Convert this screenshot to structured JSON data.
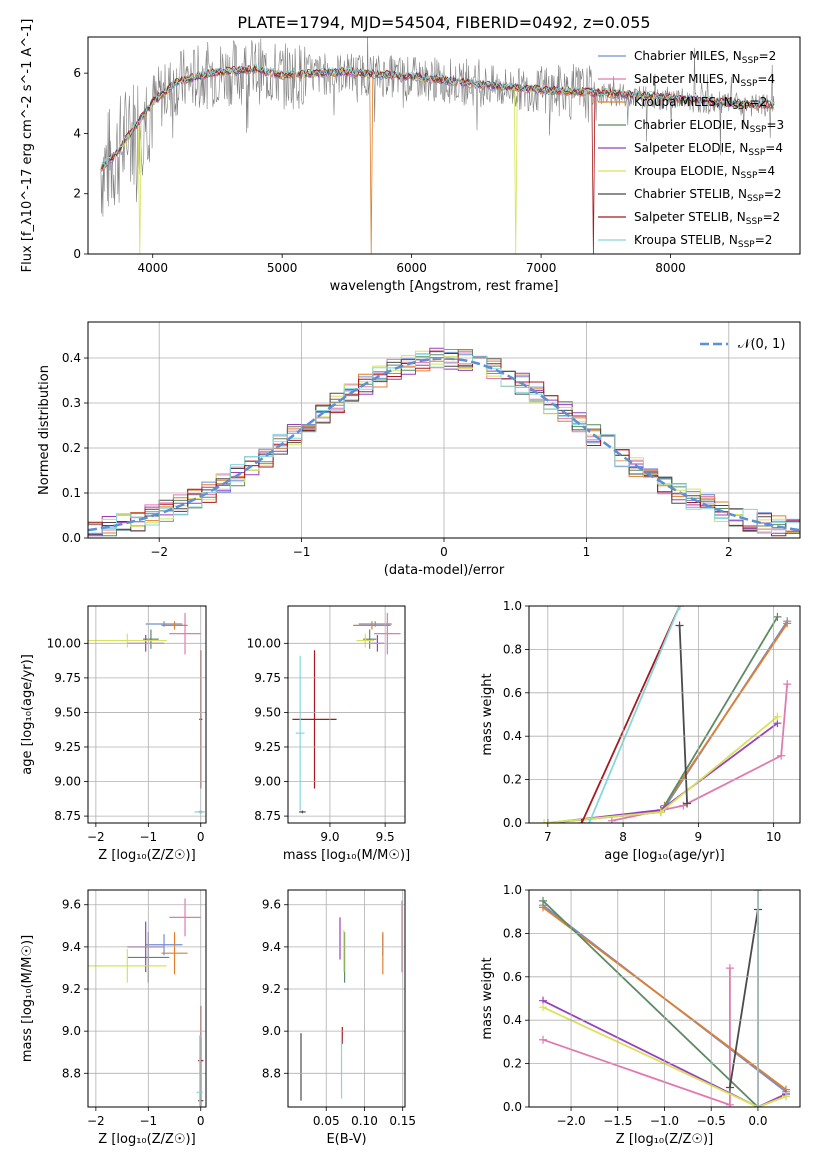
{
  "title": "PLATE=1794, MJD=54504, FIBERID=0492, z=0.055",
  "colors": {
    "Chabrier MILES": "#6f8fd6",
    "Salpeter MILES": "#e07ab0",
    "Kroupa MILES": "#df7f2e",
    "Chabrier ELODIE": "#5d8a62",
    "Salpeter ELODIE": "#9b3fbd",
    "Kroupa ELODIE": "#d7e35a",
    "Chabrier STELIB": "#4b4b4b",
    "Salpeter STELIB": "#a8181c",
    "Kroupa STELIB": "#86d8dc",
    "data": "#808080",
    "normal": "#5b8fd6"
  },
  "chart_data": [
    {
      "type": "line",
      "name": "spectrum",
      "xlabel": "wavelength [Angstrom, rest frame]",
      "ylabel": "Flux [f_λ10^-17 erg cm^-2 s^-1 A^-1]",
      "xlim": [
        3500,
        9000
      ],
      "ylim": [
        0,
        7.2
      ],
      "xticks": [
        "4000",
        "5000",
        "6000",
        "7000",
        "8000"
      ],
      "yticks": [
        "0",
        "2",
        "4",
        "6"
      ],
      "legend": [
        {
          "label": "Chabrier MILES, N",
          "sub": "SSP",
          "suffix": "=2",
          "key": "Chabrier MILES"
        },
        {
          "label": "Salpeter MILES, N",
          "sub": "SSP",
          "suffix": "=4",
          "key": "Salpeter MILES"
        },
        {
          "label": "Kroupa MILES, N",
          "sub": "SSP",
          "suffix": "=2",
          "key": "Kroupa MILES"
        },
        {
          "label": "Chabrier ELODIE, N",
          "sub": "SSP",
          "suffix": "=3",
          "key": "Chabrier ELODIE"
        },
        {
          "label": "Salpeter ELODIE, N",
          "sub": "SSP",
          "suffix": "=4",
          "key": "Salpeter ELODIE"
        },
        {
          "label": "Kroupa ELODIE, N",
          "sub": "SSP",
          "suffix": "=4",
          "key": "Kroupa ELODIE"
        },
        {
          "label": "Chabrier STELIB, N",
          "sub": "SSP",
          "suffix": "=2",
          "key": "Chabrier STELIB"
        },
        {
          "label": "Salpeter STELIB, N",
          "sub": "SSP",
          "suffix": "=2",
          "key": "Salpeter STELIB"
        },
        {
          "label": "Kroupa STELIB, N",
          "sub": "SSP",
          "suffix": "=2",
          "key": "Kroupa STELIB"
        }
      ],
      "continuum": [
        [
          3600,
          2.8
        ],
        [
          3700,
          3.2
        ],
        [
          3800,
          3.8
        ],
        [
          3900,
          4.4
        ],
        [
          4000,
          5.0
        ],
        [
          4200,
          5.7
        ],
        [
          4500,
          6.0
        ],
        [
          4800,
          6.1
        ],
        [
          5000,
          5.9
        ],
        [
          5500,
          6.0
        ],
        [
          6000,
          5.85
        ],
        [
          6500,
          5.6
        ],
        [
          7000,
          5.4
        ],
        [
          7500,
          5.3
        ],
        [
          8000,
          5.15
        ],
        [
          8500,
          4.95
        ],
        [
          8800,
          4.9
        ]
      ]
    },
    {
      "type": "histogram",
      "name": "residuals",
      "xlabel": "(data-model)/error",
      "ylabel": "Normed distribution",
      "xlim": [
        -2.5,
        2.5
      ],
      "ylim": [
        0,
        0.48
      ],
      "xticks": [
        "−2",
        "−1",
        "0",
        "1",
        "2"
      ],
      "yticks": [
        "0.0",
        "0.1",
        "0.2",
        "0.3",
        "0.4"
      ],
      "legend": "𝒩(0, 1)",
      "bin_width": 0.1
    },
    {
      "type": "scatter",
      "name": "age-vs-Z",
      "xlabel": "Z [log₁₀(Z/Z☉)]",
      "ylabel": "age  [log₁₀(age/yr)]",
      "xlim": [
        -2.15,
        0.1
      ],
      "ylim": [
        8.7,
        10.27
      ],
      "xticks": [
        "−2",
        "−1",
        "0"
      ],
      "yticks": [
        "8.75",
        "9.00",
        "9.25",
        "9.50",
        "9.75",
        "10.00"
      ],
      "points": [
        {
          "s": "Chabrier MILES",
          "x": -0.7,
          "xe": 0.35,
          "y": 10.14,
          "ye": 0.02
        },
        {
          "s": "Salpeter MILES",
          "x": -0.3,
          "xe": 0.3,
          "y": 10.07,
          "ye": 0.15
        },
        {
          "s": "Kroupa MILES",
          "x": -0.5,
          "xe": 0.25,
          "y": 10.13,
          "ye": 0.03
        },
        {
          "s": "Chabrier ELODIE",
          "x": -0.95,
          "xe": 0.15,
          "y": 10.03,
          "ye": 0.07
        },
        {
          "s": "Salpeter ELODIE",
          "x": -1.05,
          "xe": 0.35,
          "y": 10.0,
          "ye": 0.06
        },
        {
          "s": "Kroupa ELODIE",
          "x": -1.4,
          "xe": 0.75,
          "y": 10.02,
          "ye": 0.05
        },
        {
          "s": "Chabrier STELIB",
          "x": 0.0,
          "xe": 0.05,
          "y": 8.78,
          "ye": 0.01
        },
        {
          "s": "Salpeter STELIB",
          "x": 0.0,
          "xe": 0.03,
          "y": 9.45,
          "ye": 0.5
        },
        {
          "s": "Kroupa STELIB",
          "x": -0.02,
          "xe": 0.1,
          "y": 8.78,
          "ye": 0.01
        }
      ]
    },
    {
      "type": "scatter",
      "name": "age-vs-mass",
      "xlabel": "mass [log₁₀(M/M☉)]",
      "ylabel": "",
      "xlim": [
        8.62,
        9.68
      ],
      "ylim": [
        8.7,
        10.27
      ],
      "xticks": [
        "9.0",
        "9.5"
      ],
      "yticks": [
        "8.75",
        "9.00",
        "9.25",
        "9.50",
        "9.75",
        "10.00"
      ],
      "points": [
        {
          "s": "Chabrier MILES",
          "x": 9.41,
          "xe": 0.15,
          "y": 10.14,
          "ye": 0.02
        },
        {
          "s": "Salpeter MILES",
          "x": 9.52,
          "xe": 0.12,
          "y": 10.07,
          "ye": 0.15
        },
        {
          "s": "Kroupa MILES",
          "x": 9.38,
          "xe": 0.17,
          "y": 10.13,
          "ye": 0.03
        },
        {
          "s": "Chabrier ELODIE",
          "x": 9.36,
          "xe": 0.06,
          "y": 10.03,
          "ye": 0.07
        },
        {
          "s": "Salpeter ELODIE",
          "x": 9.43,
          "xe": 0.06,
          "y": 10.0,
          "ye": 0.06
        },
        {
          "s": "Kroupa ELODIE",
          "x": 9.32,
          "xe": 0.08,
          "y": 10.02,
          "ye": 0.05
        },
        {
          "s": "Chabrier STELIB",
          "x": 8.75,
          "xe": 0.03,
          "y": 8.78,
          "ye": 0.01
        },
        {
          "s": "Salpeter STELIB",
          "x": 8.86,
          "xe": 0.2,
          "y": 9.45,
          "ye": 0.5
        },
        {
          "s": "Kroupa STELIB",
          "x": 8.73,
          "xe": 0.04,
          "y": 9.35,
          "ye": 0.56
        }
      ]
    },
    {
      "type": "line",
      "name": "weight-vs-age",
      "xlabel": "age  [log₁₀(age/yr)]",
      "ylabel": "mass weight",
      "xlim": [
        6.75,
        10.35
      ],
      "ylim": [
        0,
        1
      ],
      "xticks": [
        "7",
        "8",
        "9",
        "10"
      ],
      "yticks": [
        "0.0",
        "0.2",
        "0.4",
        "0.6",
        "0.8",
        "1.0"
      ],
      "series": [
        {
          "s": "Chabrier MILES",
          "x": [
            8.55,
            10.18
          ],
          "y": [
            0.07,
            0.93
          ]
        },
        {
          "s": "Salpeter MILES",
          "x": [
            7.85,
            8.8,
            10.1,
            10.18
          ],
          "y": [
            0.01,
            0.08,
            0.31,
            0.64
          ]
        },
        {
          "s": "Kroupa MILES",
          "x": [
            8.55,
            10.18
          ],
          "y": [
            0.08,
            0.92
          ]
        },
        {
          "s": "Chabrier ELODIE",
          "x": [
            7.0,
            8.5,
            10.05
          ],
          "y": [
            0.0,
            0.05,
            0.95
          ]
        },
        {
          "s": "Salpeter ELODIE",
          "x": [
            7.0,
            8.5,
            10.05
          ],
          "y": [
            0.0,
            0.06,
            0.46
          ]
        },
        {
          "s": "Kroupa ELODIE",
          "x": [
            6.95,
            8.5,
            10.05
          ],
          "y": [
            0.0,
            0.05,
            0.49
          ]
        },
        {
          "s": "Chabrier STELIB",
          "x": [
            8.75,
            8.85
          ],
          "y": [
            0.91,
            0.09
          ]
        },
        {
          "s": "Salpeter STELIB",
          "x": [
            7.45,
            8.75
          ],
          "y": [
            0.0,
            1.0
          ]
        },
        {
          "s": "Kroupa STELIB",
          "x": [
            7.55,
            8.75
          ],
          "y": [
            0.0,
            1.0
          ]
        }
      ]
    },
    {
      "type": "scatter",
      "name": "mass-vs-Z",
      "xlabel": "Z [log₁₀(Z/Z☉)]",
      "ylabel": "mass [log₁₀(M/M☉)]",
      "xlim": [
        -2.15,
        0.1
      ],
      "ylim": [
        8.64,
        9.67
      ],
      "xticks": [
        "−2",
        "−1",
        "0"
      ],
      "yticks": [
        "8.8",
        "9.0",
        "9.2",
        "9.4",
        "9.6"
      ],
      "points": [
        {
          "s": "Chabrier MILES",
          "x": -0.7,
          "xe": 0.35,
          "y": 9.41,
          "ye": 0.05
        },
        {
          "s": "Salpeter MILES",
          "x": -0.3,
          "xe": 0.3,
          "y": 9.54,
          "ye": 0.09
        },
        {
          "s": "Kroupa MILES",
          "x": -0.5,
          "xe": 0.25,
          "y": 9.37,
          "ye": 0.1
        },
        {
          "s": "Chabrier ELODIE",
          "x": -1.0,
          "xe": 0.4,
          "y": 9.35,
          "ye": 0.12
        },
        {
          "s": "Salpeter ELODIE",
          "x": -1.05,
          "xe": 0.35,
          "y": 9.4,
          "ye": 0.12
        },
        {
          "s": "Kroupa ELODIE",
          "x": -1.4,
          "xe": 0.75,
          "y": 9.31,
          "ye": 0.08
        },
        {
          "s": "Chabrier STELIB",
          "x": 0.0,
          "xe": 0.05,
          "y": 8.67,
          "ye": 0.3
        },
        {
          "s": "Salpeter STELIB",
          "x": 0.0,
          "xe": 0.05,
          "y": 8.86,
          "ye": 0.26
        },
        {
          "s": "Kroupa STELIB",
          "x": -0.02,
          "xe": 0.06,
          "y": 8.71,
          "ye": 0.27
        }
      ]
    },
    {
      "type": "scatter",
      "name": "mass-vs-ebv",
      "xlabel": "E(B-V)",
      "ylabel": "",
      "xlim": [
        0.0,
        0.153
      ],
      "ylim": [
        8.64,
        9.67
      ],
      "xticks": [
        "0.05",
        "0.10",
        "0.15"
      ],
      "yticks": [
        "8.8",
        "9.0",
        "9.2",
        "9.4",
        "9.6"
      ],
      "points": [
        {
          "s": "Chabrier MILES",
          "x": 0.124,
          "xe": 0,
          "y": 9.41,
          "ye": 0.05
        },
        {
          "s": "Salpeter MILES",
          "x": 0.149,
          "xe": 0,
          "y": 9.45,
          "ye": 0.17
        },
        {
          "s": "Kroupa MILES",
          "x": 0.124,
          "xe": 0,
          "y": 9.37,
          "ye": 0.1
        },
        {
          "s": "Chabrier ELODIE",
          "x": 0.074,
          "xe": 0,
          "y": 9.35,
          "ye": 0.12
        },
        {
          "s": "Salpeter ELODIE",
          "x": 0.068,
          "xe": 0,
          "y": 9.44,
          "ye": 0.1
        },
        {
          "s": "Kroupa ELODIE",
          "x": 0.073,
          "xe": 0,
          "y": 9.38,
          "ye": 0.1
        },
        {
          "s": "Chabrier STELIB",
          "x": 0.017,
          "xe": 0,
          "y": 8.83,
          "ye": 0.16
        },
        {
          "s": "Salpeter STELIB",
          "x": 0.071,
          "xe": 0,
          "y": 8.98,
          "ye": 0.04
        },
        {
          "s": "Kroupa STELIB",
          "x": 0.07,
          "xe": 0,
          "y": 8.83,
          "ye": 0.15
        }
      ]
    },
    {
      "type": "line",
      "name": "weight-vs-Z",
      "xlabel": "Z [log₁₀(Z/Z☉)]",
      "ylabel": "mass weight",
      "xlim": [
        -2.45,
        0.45
      ],
      "ylim": [
        0,
        1
      ],
      "xticks": [
        "−2.0",
        "−1.5",
        "−1.0",
        "−0.5",
        "0.0"
      ],
      "yticks": [
        "0.0",
        "0.2",
        "0.4",
        "0.6",
        "0.8",
        "1.0"
      ],
      "series": [
        {
          "s": "Chabrier MILES",
          "x": [
            -2.3,
            0.3
          ],
          "y": [
            0.93,
            0.07
          ]
        },
        {
          "s": "Salpeter MILES",
          "x": [
            -2.3,
            -0.3,
            -0.3
          ],
          "y": [
            0.31,
            0.01,
            0.64
          ]
        },
        {
          "s": "Kroupa MILES",
          "x": [
            -2.3,
            0.3
          ],
          "y": [
            0.92,
            0.08
          ]
        },
        {
          "s": "Chabrier ELODIE",
          "x": [
            -2.3,
            0.0,
            0.3
          ],
          "y": [
            0.95,
            0.0,
            0.05
          ]
        },
        {
          "s": "Salpeter ELODIE",
          "x": [
            -2.3,
            0.0,
            0.3
          ],
          "y": [
            0.49,
            0.0,
            0.06
          ]
        },
        {
          "s": "Kroupa ELODIE",
          "x": [
            -2.3,
            0.0,
            0.3
          ],
          "y": [
            0.46,
            0.0,
            0.05
          ]
        },
        {
          "s": "Chabrier STELIB",
          "x": [
            -0.3,
            0.0
          ],
          "y": [
            0.09,
            0.91
          ]
        },
        {
          "s": "Salpeter STELIB",
          "x": [
            0.0,
            0.0
          ],
          "y": [
            0.0,
            1.0
          ]
        },
        {
          "s": "Kroupa STELIB",
          "x": [
            0.0,
            0.0
          ],
          "y": [
            0.0,
            1.0
          ]
        }
      ]
    }
  ]
}
